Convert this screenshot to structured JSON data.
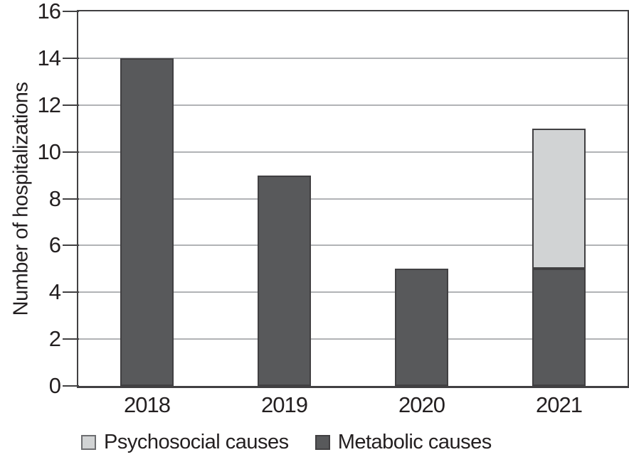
{
  "chart_data": {
    "type": "bar",
    "stacked": true,
    "categories": [
      "2018",
      "2019",
      "2020",
      "2021"
    ],
    "series": [
      {
        "name": "Metabolic causes",
        "fill": "#58595b",
        "border": "#414042",
        "values": [
          14,
          9,
          5,
          5
        ]
      },
      {
        "name": "Psychosocial causes",
        "fill": "#d1d3d4",
        "border": "#414042",
        "values": [
          0,
          0,
          0,
          6
        ]
      }
    ],
    "title": "",
    "xlabel": "",
    "ylabel": "Number of hospitalizations",
    "ylim": [
      0,
      16
    ],
    "yticks": [
      0,
      2,
      4,
      6,
      8,
      10,
      12,
      14,
      16
    ],
    "grid": true,
    "legend_position": "bottom",
    "legend": [
      {
        "label": "Psychosocial causes",
        "fill": "#d1d3d4",
        "border": "#6d6e71"
      },
      {
        "label": "Metabolic causes",
        "fill": "#58595b",
        "border": "#414042"
      }
    ]
  },
  "colors": {
    "frame": "#414042",
    "gridline": "#b1b3b6",
    "text": "#231f20",
    "background": "#ffffff"
  }
}
